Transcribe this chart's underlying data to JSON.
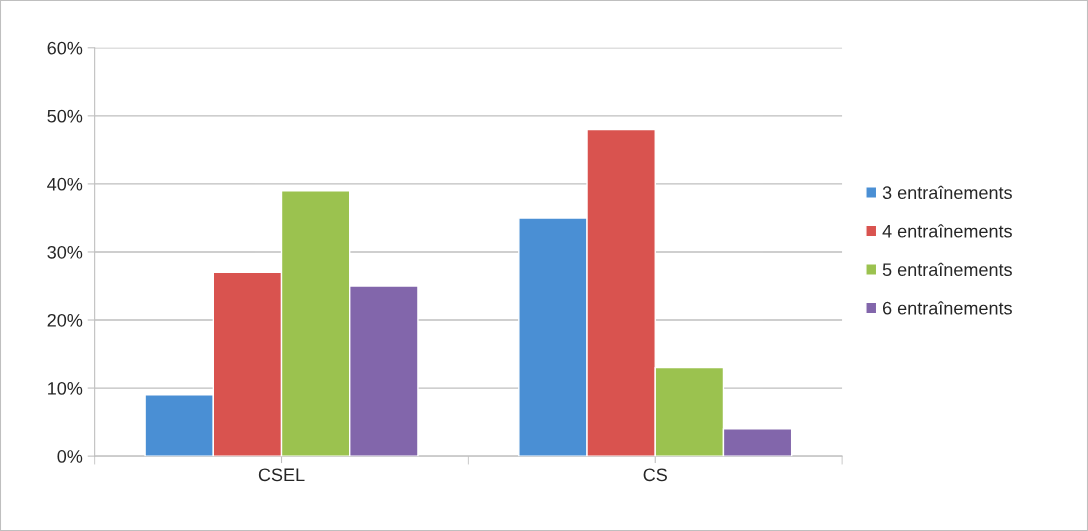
{
  "chart_data": {
    "type": "bar",
    "categories": [
      "CSEL",
      "CS"
    ],
    "series": [
      {
        "name": "3 entraînements",
        "color": "#4a8fd4",
        "values": [
          9,
          35
        ]
      },
      {
        "name": "4 entraînements",
        "color": "#d9534f",
        "values": [
          27,
          48
        ]
      },
      {
        "name": "5 entraînements",
        "color": "#9bc24f",
        "values": [
          39,
          13
        ]
      },
      {
        "name": "6 entraînements",
        "color": "#8266ab",
        "values": [
          25,
          4
        ]
      }
    ],
    "ylim": [
      0,
      60
    ],
    "yticks": [
      {
        "value": 0,
        "label": "0%"
      },
      {
        "value": 10,
        "label": "10%"
      },
      {
        "value": 20,
        "label": "20%"
      },
      {
        "value": 30,
        "label": "30%"
      },
      {
        "value": 40,
        "label": "40%"
      },
      {
        "value": 50,
        "label": "50%"
      },
      {
        "value": 60,
        "label": "60%"
      }
    ],
    "grid": "y",
    "legend": "right"
  }
}
